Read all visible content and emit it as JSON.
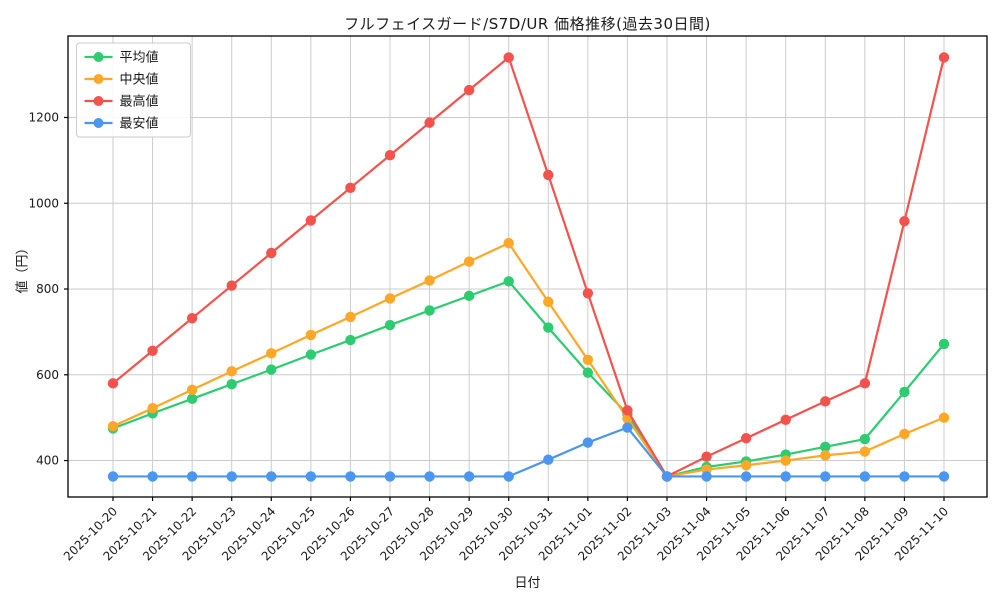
{
  "chart_data": {
    "type": "line",
    "title": "フルフェイスガード/S7D/UR 価格推移(過去30日間)",
    "xlabel": "日付",
    "ylabel": "値（円）",
    "categories": [
      "2025-10-20",
      "2025-10-21",
      "2025-10-22",
      "2025-10-23",
      "2025-10-24",
      "2025-10-25",
      "2025-10-26",
      "2025-10-27",
      "2025-10-28",
      "2025-10-29",
      "2025-10-30",
      "2025-10-31",
      "2025-11-01",
      "2025-11-02",
      "2025-11-03",
      "2025-11-04",
      "2025-11-05",
      "2025-11-06",
      "2025-11-07",
      "2025-11-08",
      "2025-11-09",
      "2025-11-10"
    ],
    "series": [
      {
        "key": "average",
        "name": "平均値",
        "color": "#2ecc71",
        "values": [
          475,
          510,
          544,
          578,
          612,
          647,
          681,
          716,
          750,
          784,
          818,
          710,
          605,
          508,
          363,
          385,
          398,
          414,
          432,
          450,
          560,
          672
        ]
      },
      {
        "key": "median",
        "name": "中央値",
        "color": "#ffa726",
        "values": [
          480,
          522,
          565,
          608,
          650,
          693,
          735,
          778,
          820,
          864,
          907,
          770,
          635,
          498,
          363,
          379,
          389,
          400,
          412,
          421,
          462,
          500
        ]
      },
      {
        "key": "max",
        "name": "最高値",
        "color": "#f4524d",
        "values": [
          580,
          656,
          732,
          808,
          884,
          960,
          1036,
          1112,
          1188,
          1264,
          1340,
          1066,
          790,
          517,
          363,
          409,
          452,
          495,
          538,
          580,
          958,
          1340
        ]
      },
      {
        "key": "min",
        "name": "最安値",
        "color": "#4a96f0",
        "values": [
          363,
          363,
          363,
          363,
          363,
          363,
          363,
          363,
          363,
          363,
          363,
          402,
          442,
          477,
          363,
          363,
          363,
          363,
          363,
          363,
          363,
          363
        ]
      }
    ],
    "yticks": [
      400,
      600,
      800,
      1000,
      1200
    ],
    "ylim": [
      315,
      1390
    ],
    "grid": true,
    "legend_position": "upper-left",
    "colors": {
      "background": "#ffffff",
      "grid": "#cccccc",
      "spine": "#000000",
      "legend_border": "#cccccc"
    }
  }
}
